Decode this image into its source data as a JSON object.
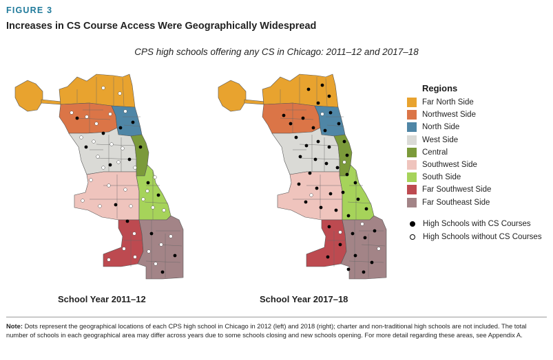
{
  "figure_label": "FIGURE 3",
  "title": "Increases in CS Course Access Were Geographically Widespread",
  "subtitle": "CPS high schools offering any CS in Chicago: 2011–12 and 2017–18",
  "maps": [
    {
      "caption": "School Year 2011–12"
    },
    {
      "caption": "School Year 2017–18"
    }
  ],
  "legend": {
    "title": "Regions",
    "regions": [
      {
        "label": "Far North Side",
        "color": "#e8a32f"
      },
      {
        "label": "Northwest Side",
        "color": "#db7547"
      },
      {
        "label": "North Side",
        "color": "#4f86a6"
      },
      {
        "label": "West Side",
        "color": "#dadad6"
      },
      {
        "label": "Central",
        "color": "#7b9a3a"
      },
      {
        "label": "Southwest Side",
        "color": "#efc4bd"
      },
      {
        "label": "South Side",
        "color": "#a6d35a"
      },
      {
        "label": "Far Southwest Side",
        "color": "#bd4a50"
      },
      {
        "label": "Far Southeast Side",
        "color": "#a38487"
      }
    ],
    "dots": [
      {
        "label": "High Schools with CS Courses",
        "style": "filled"
      },
      {
        "label": "High Schools without CS Courses",
        "style": "open"
      }
    ]
  },
  "note": {
    "label": "Note:",
    "text": "Dots represent the geographical locations of each CPS high school in Chicago in 2012 (left) and 2018 (right); charter and non-traditional high schools are not included. The total number of schools in each geographical area may differ across years due to some schools closing and new schools opening. For more detail regarding these areas, see Appendix A."
  }
}
